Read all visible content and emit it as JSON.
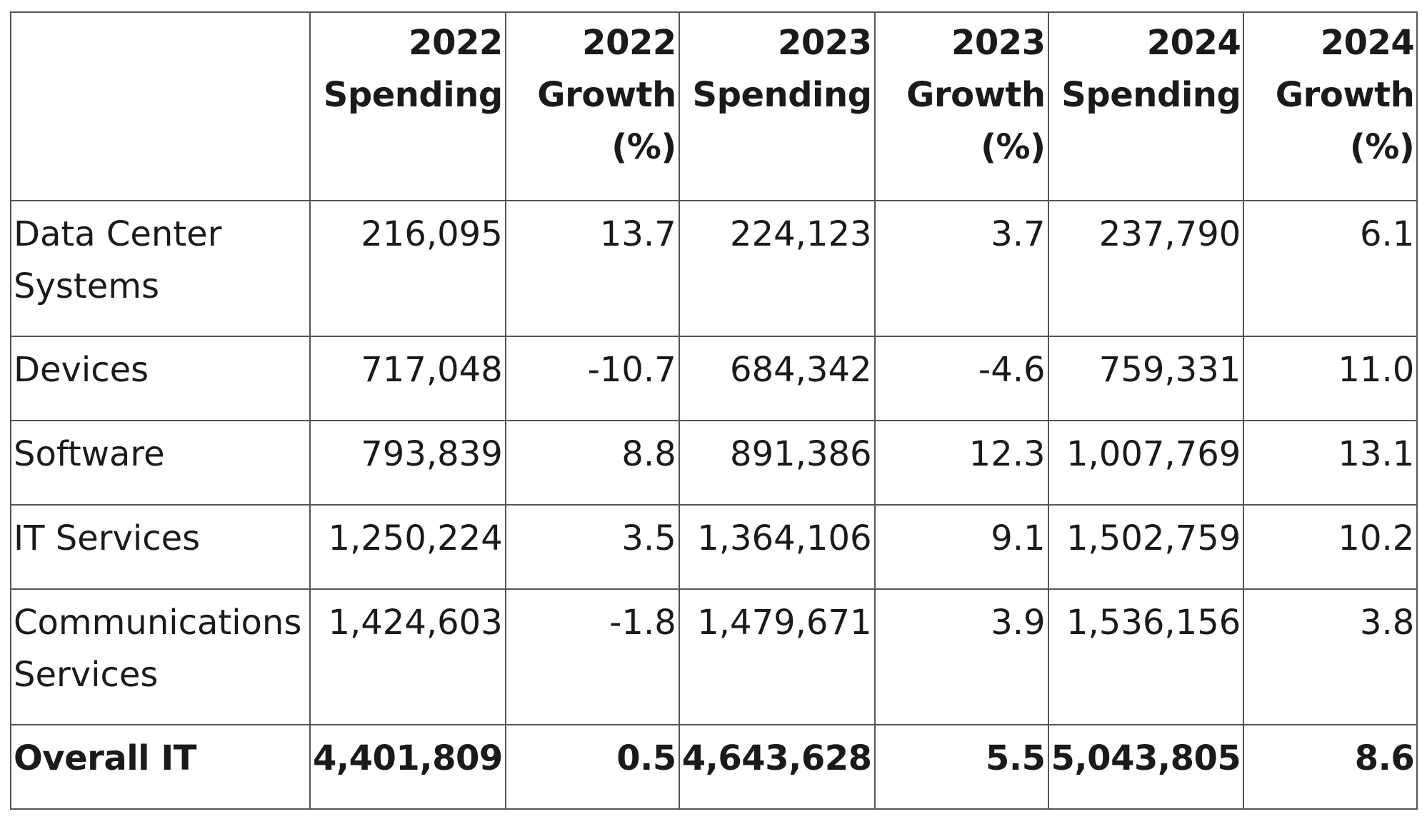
{
  "chart_data": {
    "type": "table",
    "columns": [
      "",
      "2022 Spending",
      "2022 Growth (%)",
      "2023 Spending",
      "2023 Growth (%)",
      "2024 Spending",
      "2024 Growth (%)"
    ],
    "header_lines": [
      [],
      [
        "2022",
        "Spending"
      ],
      [
        "2022",
        "Growth",
        "(%)"
      ],
      [
        "2023",
        "Spending"
      ],
      [
        "2023",
        "Growth",
        "(%)"
      ],
      [
        "2024",
        "Spending"
      ],
      [
        "2024",
        "Growth",
        "(%)"
      ]
    ],
    "rows": [
      {
        "label": "Data Center Systems",
        "values": [
          "216,095",
          "13.7",
          "224,123",
          "3.7",
          "237,790",
          "6.1"
        ]
      },
      {
        "label": "Devices",
        "values": [
          "717,048",
          "-10.7",
          "684,342",
          "-4.6",
          "759,331",
          "11.0"
        ]
      },
      {
        "label": "Software",
        "values": [
          "793,839",
          "8.8",
          "891,386",
          "12.3",
          "1,007,769",
          "13.1"
        ]
      },
      {
        "label": "IT Services",
        "values": [
          "1,250,224",
          "3.5",
          "1,364,106",
          "9.1",
          "1,502,759",
          "10.2"
        ]
      },
      {
        "label": "Communications Services",
        "values": [
          "1,424,603",
          "-1.8",
          "1,479,671",
          "3.9",
          "1,536,156",
          "3.8"
        ]
      },
      {
        "label": "Overall IT",
        "values": [
          "4,401,809",
          "0.5",
          "4,643,628",
          "5.5",
          "5,043,805",
          "8.6"
        ],
        "bold": true
      }
    ]
  }
}
